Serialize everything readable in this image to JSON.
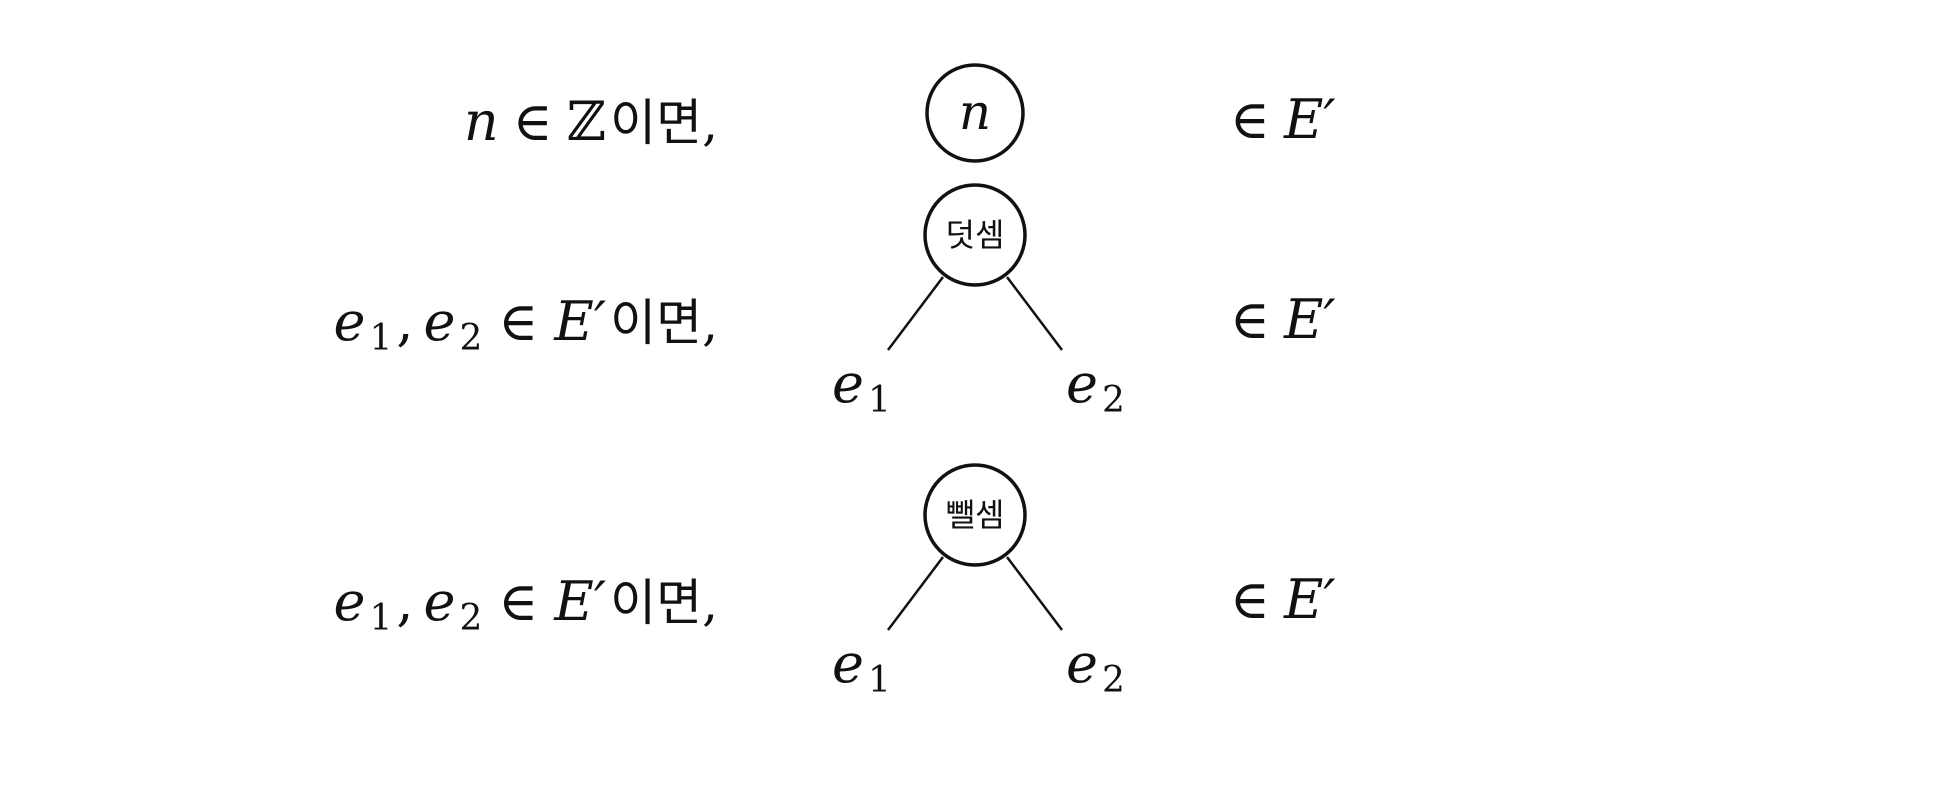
{
  "rules": [
    {
      "condition": {
        "var": "n",
        "in": "∈",
        "set": "ℤ",
        "suffix": "이면,"
      },
      "tree": {
        "node": "n",
        "children": []
      },
      "result": {
        "in": "∈",
        "set": "E′"
      }
    },
    {
      "condition": {
        "e": "e",
        "sub1": "1",
        "comma": ",",
        "sub2": "2",
        "in": "∈",
        "set": "E′",
        "suffix": "이면,"
      },
      "tree": {
        "node": "덧셈",
        "children": [
          {
            "e": "e",
            "sub": "1"
          },
          {
            "e": "e",
            "sub": "2"
          }
        ]
      },
      "result": {
        "in": "∈",
        "set": "E′"
      }
    },
    {
      "condition": {
        "e": "e",
        "sub1": "1",
        "comma": ",",
        "sub2": "2",
        "in": "∈",
        "set": "E′",
        "suffix": "이면,"
      },
      "tree": {
        "node": "뺄셈",
        "children": [
          {
            "e": "e",
            "sub": "1"
          },
          {
            "e": "e",
            "sub": "2"
          }
        ]
      },
      "result": {
        "in": "∈",
        "set": "E′"
      }
    }
  ],
  "colors": {
    "ink": "#111111",
    "background": "#ffffff"
  }
}
